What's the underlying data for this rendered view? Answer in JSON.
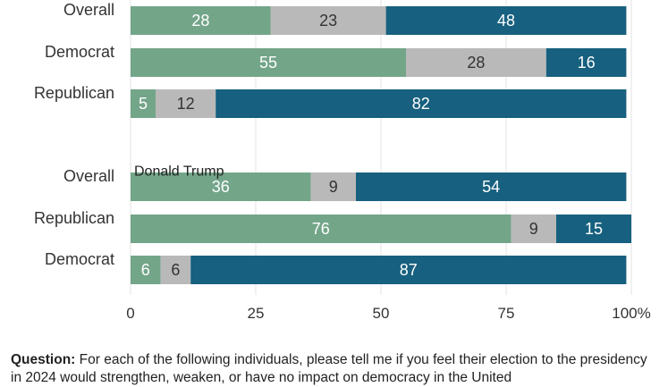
{
  "chart_data": {
    "type": "bar",
    "orientation": "horizontal",
    "stacked": true,
    "xlim": [
      0,
      100
    ],
    "xticks": [
      0,
      25,
      50,
      75,
      100
    ],
    "xtick_labels": [
      "0",
      "25",
      "50",
      "75",
      "100%"
    ],
    "grid": "vertical",
    "colors": [
      "#73a589",
      "#b9b9b9",
      "#17607f"
    ],
    "label_colors": [
      "#ffffff",
      "#333333",
      "#ffffff"
    ],
    "groups": [
      {
        "title": "",
        "bars": [
          {
            "label": "Overall",
            "values": [
              28,
              23,
              48
            ]
          },
          {
            "label": "Democrat",
            "values": [
              55,
              28,
              16
            ]
          },
          {
            "label": "Republican",
            "values": [
              5,
              12,
              82
            ]
          }
        ]
      },
      {
        "title": "Donald Trump",
        "bars": [
          {
            "label": "Overall",
            "values": [
              36,
              9,
              54
            ]
          },
          {
            "label": "Republican",
            "values": [
              76,
              9,
              15
            ]
          },
          {
            "label": "Democrat",
            "values": [
              6,
              6,
              87
            ]
          }
        ]
      }
    ]
  },
  "footnote": {
    "label": "Question:",
    "text": " For each of the following individuals, please tell me if you feel their election to the presidency in 2024 would strengthen, weaken, or have no impact on democracy in the United"
  }
}
